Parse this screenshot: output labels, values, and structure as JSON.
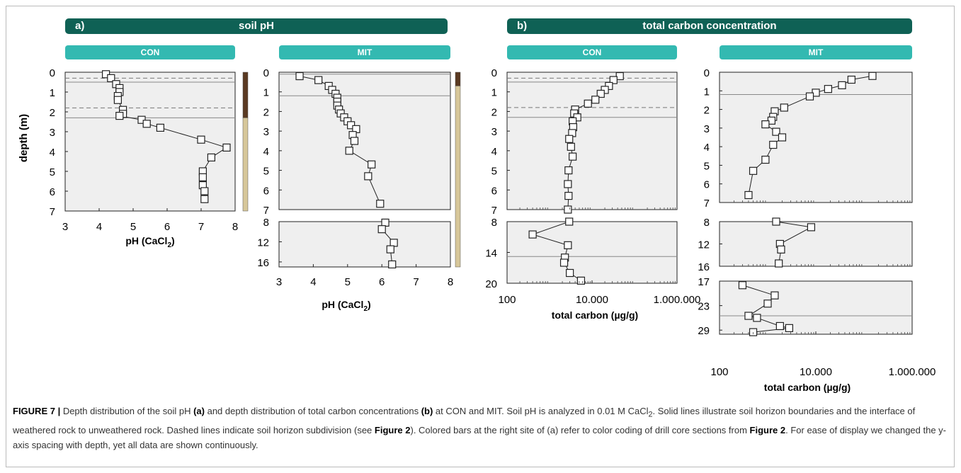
{
  "banners": {
    "a_label": "a)",
    "a_title": "soil pH",
    "b_label": "b)",
    "b_title": "total carbon concentration"
  },
  "sites": {
    "con": "CON",
    "mit": "MIT"
  },
  "colors": {
    "banner": "#0f6155",
    "site": "#33b9b1",
    "plot_bg": "#efefef",
    "bar_dark": "#5a3a22",
    "bar_light": "#d7c79a"
  },
  "axes": {
    "depth_label": "depth (m)",
    "ph_label": "pH (CaCl",
    "ph_sub": "2",
    "ph_close": ")",
    "carbon_label": "total carbon (µg/g)"
  },
  "chart_data": [
    {
      "id": "ph_con",
      "type": "scatter",
      "panel": "a) soil pH",
      "site": "CON",
      "xlim": [
        3,
        8
      ],
      "xticks": [
        "3",
        "4",
        "5",
        "6",
        "7",
        "8"
      ],
      "segments": [
        {
          "ylim": [
            0,
            7
          ],
          "yticks": [
            "0",
            "1",
            "2",
            "3",
            "4",
            "5",
            "6",
            "7"
          ],
          "points": [
            [
              4.2,
              0.1
            ],
            [
              4.35,
              0.3
            ],
            [
              4.5,
              0.6
            ],
            [
              4.6,
              0.8
            ],
            [
              4.6,
              1.0
            ],
            [
              4.55,
              1.2
            ],
            [
              4.55,
              1.4
            ],
            [
              4.7,
              1.9
            ],
            [
              4.7,
              2.1
            ],
            [
              4.6,
              2.2
            ],
            [
              5.25,
              2.4
            ],
            [
              5.4,
              2.6
            ],
            [
              5.8,
              2.8
            ],
            [
              7.0,
              3.4
            ],
            [
              7.75,
              3.8
            ],
            [
              7.3,
              4.3
            ],
            [
              7.05,
              5.0
            ],
            [
              7.05,
              5.3
            ],
            [
              7.05,
              5.7
            ],
            [
              7.1,
              6.0
            ],
            [
              7.1,
              6.4
            ]
          ],
          "solid_lines": [
            0.5,
            2.3
          ],
          "dashed_lines": [
            0.3,
            1.8
          ]
        }
      ],
      "color_bar": [
        {
          "from": 0,
          "to": 2.3,
          "color": "#5a3a22"
        },
        {
          "from": 2.3,
          "to": 7,
          "color": "#d7c79a"
        }
      ]
    },
    {
      "id": "ph_mit",
      "type": "scatter",
      "panel": "a) soil pH",
      "site": "MIT",
      "xlim": [
        3,
        8
      ],
      "xticks": [
        "3",
        "4",
        "5",
        "6",
        "7",
        "8"
      ],
      "segments": [
        {
          "ylim": [
            0,
            7
          ],
          "yticks": [
            "0",
            "1",
            "2",
            "3",
            "4",
            "5",
            "6",
            "7"
          ],
          "points": [
            [
              3.6,
              0.2
            ],
            [
              4.15,
              0.4
            ],
            [
              4.45,
              0.7
            ],
            [
              4.55,
              0.9
            ],
            [
              4.65,
              1.1
            ],
            [
              4.7,
              1.3
            ],
            [
              4.7,
              1.5
            ],
            [
              4.7,
              1.7
            ],
            [
              4.75,
              1.9
            ],
            [
              4.8,
              2.1
            ],
            [
              4.9,
              2.3
            ],
            [
              5.0,
              2.5
            ],
            [
              5.1,
              2.7
            ],
            [
              5.25,
              2.9
            ],
            [
              5.15,
              3.2
            ],
            [
              5.2,
              3.5
            ],
            [
              5.05,
              4.0
            ],
            [
              5.7,
              4.7
            ],
            [
              5.6,
              5.3
            ],
            [
              5.95,
              6.7
            ]
          ],
          "solid_lines": [
            0.1,
            1.2
          ],
          "dashed_lines": []
        },
        {
          "ylim": [
            8,
            17
          ],
          "yticks": [
            "8",
            "12",
            "16"
          ],
          "points": [
            [
              6.1,
              8.2
            ],
            [
              6.0,
              9.5
            ],
            [
              6.35,
              12.2
            ],
            [
              6.25,
              13.5
            ],
            [
              6.3,
              16.5
            ]
          ],
          "solid_lines": [],
          "dashed_lines": []
        }
      ],
      "color_bar": [
        {
          "from": 0,
          "to": 1.2,
          "color": "#5a3a22"
        },
        {
          "from": 1.2,
          "to": 17,
          "color": "#d7c79a"
        }
      ]
    },
    {
      "id": "tc_con",
      "type": "scatter",
      "panel": "b) total carbon concentration",
      "site": "CON",
      "x_scale": "log",
      "xlim": [
        100,
        1000000
      ],
      "xticks": [
        "100",
        "10.000",
        "1.000.000"
      ],
      "segments": [
        {
          "ylim": [
            0,
            7
          ],
          "yticks": [
            "0",
            "1",
            "2",
            "3",
            "4",
            "5",
            "6",
            "7"
          ],
          "points": [
            [
              45000,
              0.2
            ],
            [
              32000,
              0.4
            ],
            [
              25000,
              0.7
            ],
            [
              20000,
              0.9
            ],
            [
              16000,
              1.1
            ],
            [
              12000,
              1.4
            ],
            [
              8000,
              1.6
            ],
            [
              4000,
              1.9
            ],
            [
              3800,
              2.1
            ],
            [
              4500,
              2.3
            ],
            [
              3500,
              2.5
            ],
            [
              3600,
              2.8
            ],
            [
              3400,
              3.1
            ],
            [
              2900,
              3.4
            ],
            [
              3200,
              3.8
            ],
            [
              3500,
              4.3
            ],
            [
              2800,
              5.0
            ],
            [
              2700,
              5.7
            ],
            [
              2800,
              6.3
            ],
            [
              2700,
              7.0
            ]
          ],
          "solid_lines": [
            0.5,
            2.3
          ],
          "dashed_lines": [
            0.3,
            1.8
          ]
        },
        {
          "ylim": [
            8,
            20
          ],
          "yticks": [
            "8",
            "14",
            "20"
          ],
          "points": [
            [
              2900,
              8.0
            ],
            [
              400,
              10.5
            ],
            [
              2700,
              12.6
            ],
            [
              2300,
              15.0
            ],
            [
              2200,
              16.0
            ],
            [
              3000,
              18.0
            ],
            [
              5500,
              19.5
            ]
          ],
          "solid_lines": [
            14.8
          ],
          "dashed_lines": []
        }
      ]
    },
    {
      "id": "tc_mit",
      "type": "scatter",
      "panel": "b) total carbon concentration",
      "site": "MIT",
      "x_scale": "log",
      "xlim": [
        100,
        1000000
      ],
      "xticks": [
        "100",
        "10.000",
        "1.000.000"
      ],
      "segments": [
        {
          "ylim": [
            0,
            7
          ],
          "yticks": [
            "0",
            "1",
            "2",
            "3",
            "4",
            "5",
            "6",
            "7"
          ],
          "points": [
            [
              150000,
              0.2
            ],
            [
              55000,
              0.4
            ],
            [
              35000,
              0.7
            ],
            [
              18000,
              0.9
            ],
            [
              10000,
              1.1
            ],
            [
              7500,
              1.3
            ],
            [
              2200,
              1.9
            ],
            [
              1400,
              2.1
            ],
            [
              1300,
              2.4
            ],
            [
              1200,
              2.6
            ],
            [
              900,
              2.8
            ],
            [
              1500,
              3.2
            ],
            [
              2000,
              3.5
            ],
            [
              1300,
              3.9
            ],
            [
              900,
              4.7
            ],
            [
              500,
              5.3
            ],
            [
              400,
              6.6
            ]
          ],
          "solid_lines": [
            1.2
          ],
          "dashed_lines": []
        },
        {
          "ylim": [
            8,
            16
          ],
          "yticks": [
            "8",
            "12",
            "16"
          ],
          "points": [
            [
              1500,
              8.0
            ],
            [
              8000,
              9.0
            ],
            [
              1800,
              12.0
            ],
            [
              1900,
              13.0
            ],
            [
              1700,
              15.5
            ]
          ],
          "solid_lines": [],
          "dashed_lines": []
        },
        {
          "ylim": [
            17,
            30
          ],
          "yticks": [
            "17",
            "23",
            "29"
          ],
          "points": [
            [
              300,
              18.0
            ],
            [
              1400,
              20.5
            ],
            [
              1000,
              22.5
            ],
            [
              400,
              25.5
            ],
            [
              600,
              26.0
            ],
            [
              1800,
              28.0
            ],
            [
              2800,
              28.5
            ],
            [
              500,
              29.5
            ]
          ],
          "solid_lines": [
            25.5
          ],
          "dashed_lines": []
        }
      ]
    }
  ],
  "caption": {
    "fig": "FIGURE 7 |",
    "t1": " Depth distribution of the soil pH ",
    "b1": "(a)",
    "t2": " and depth distribution of total carbon concentrations ",
    "b2": "(b)",
    "t3": " at CON and MIT. Soil pH is analyzed in 0.01 M CaCl",
    "sub": "2",
    "t4": ". Solid lines illustrate soil horizon boundaries and the interface of weathered rock to unweathered rock. Dashed lines indicate soil horizon subdivision (see ",
    "b3": "Figure 2",
    "t5": "). Colored bars at the right site of (a) refer to color coding of drill core sections from ",
    "b4": "Figure 2",
    "t6": ". For ease of display we changed the y-axis spacing with depth, yet all data are shown continuously."
  }
}
